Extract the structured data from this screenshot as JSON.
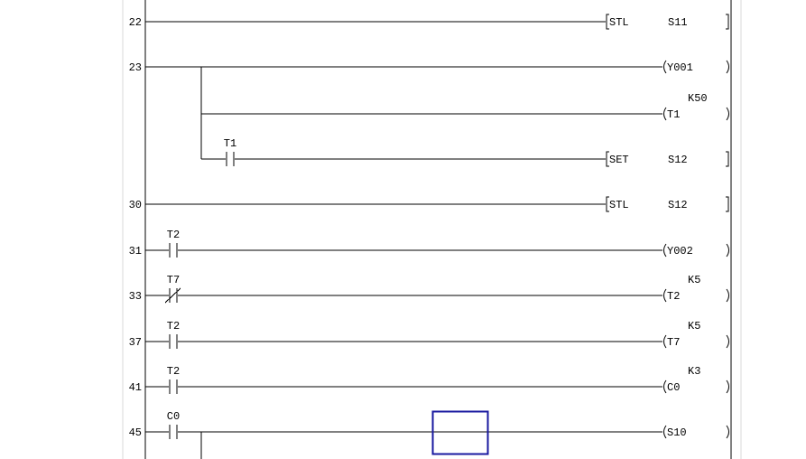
{
  "ladder": {
    "colors": {
      "line": "#000000",
      "cursor": "#1a1aa0",
      "margin": "#d8d8d8"
    },
    "rungs": [
      {
        "step": "22",
        "contacts": [],
        "output": {
          "kind": "instruction",
          "op": "STL",
          "operand": "S11"
        }
      },
      {
        "step": "23",
        "contacts": [],
        "output": {
          "kind": "coil",
          "device": "Y001"
        },
        "branches": [
          {
            "contacts": [],
            "output": {
              "kind": "coil",
              "device": "T1",
              "setting": "K50"
            }
          },
          {
            "contacts": [
              {
                "device": "T1",
                "type": "NO"
              }
            ],
            "output": {
              "kind": "instruction",
              "op": "SET",
              "operand": "S12"
            }
          }
        ]
      },
      {
        "step": "30",
        "contacts": [],
        "output": {
          "kind": "instruction",
          "op": "STL",
          "operand": "S12"
        }
      },
      {
        "step": "31",
        "contacts": [
          {
            "device": "T2",
            "type": "NO"
          }
        ],
        "output": {
          "kind": "coil",
          "device": "Y002"
        }
      },
      {
        "step": "33",
        "contacts": [
          {
            "device": "T7",
            "type": "NC"
          }
        ],
        "output": {
          "kind": "coil",
          "device": "T2",
          "setting": "K5"
        }
      },
      {
        "step": "37",
        "contacts": [
          {
            "device": "T2",
            "type": "NO"
          }
        ],
        "output": {
          "kind": "coil",
          "device": "T7",
          "setting": "K5"
        }
      },
      {
        "step": "41",
        "contacts": [
          {
            "device": "T2",
            "type": "NO"
          }
        ],
        "output": {
          "kind": "coil",
          "device": "C0",
          "setting": "K3"
        }
      },
      {
        "step": "45",
        "contacts": [
          {
            "device": "C0",
            "type": "NO"
          }
        ],
        "output": {
          "kind": "coil",
          "device": "S10"
        },
        "continues": true
      }
    ]
  }
}
